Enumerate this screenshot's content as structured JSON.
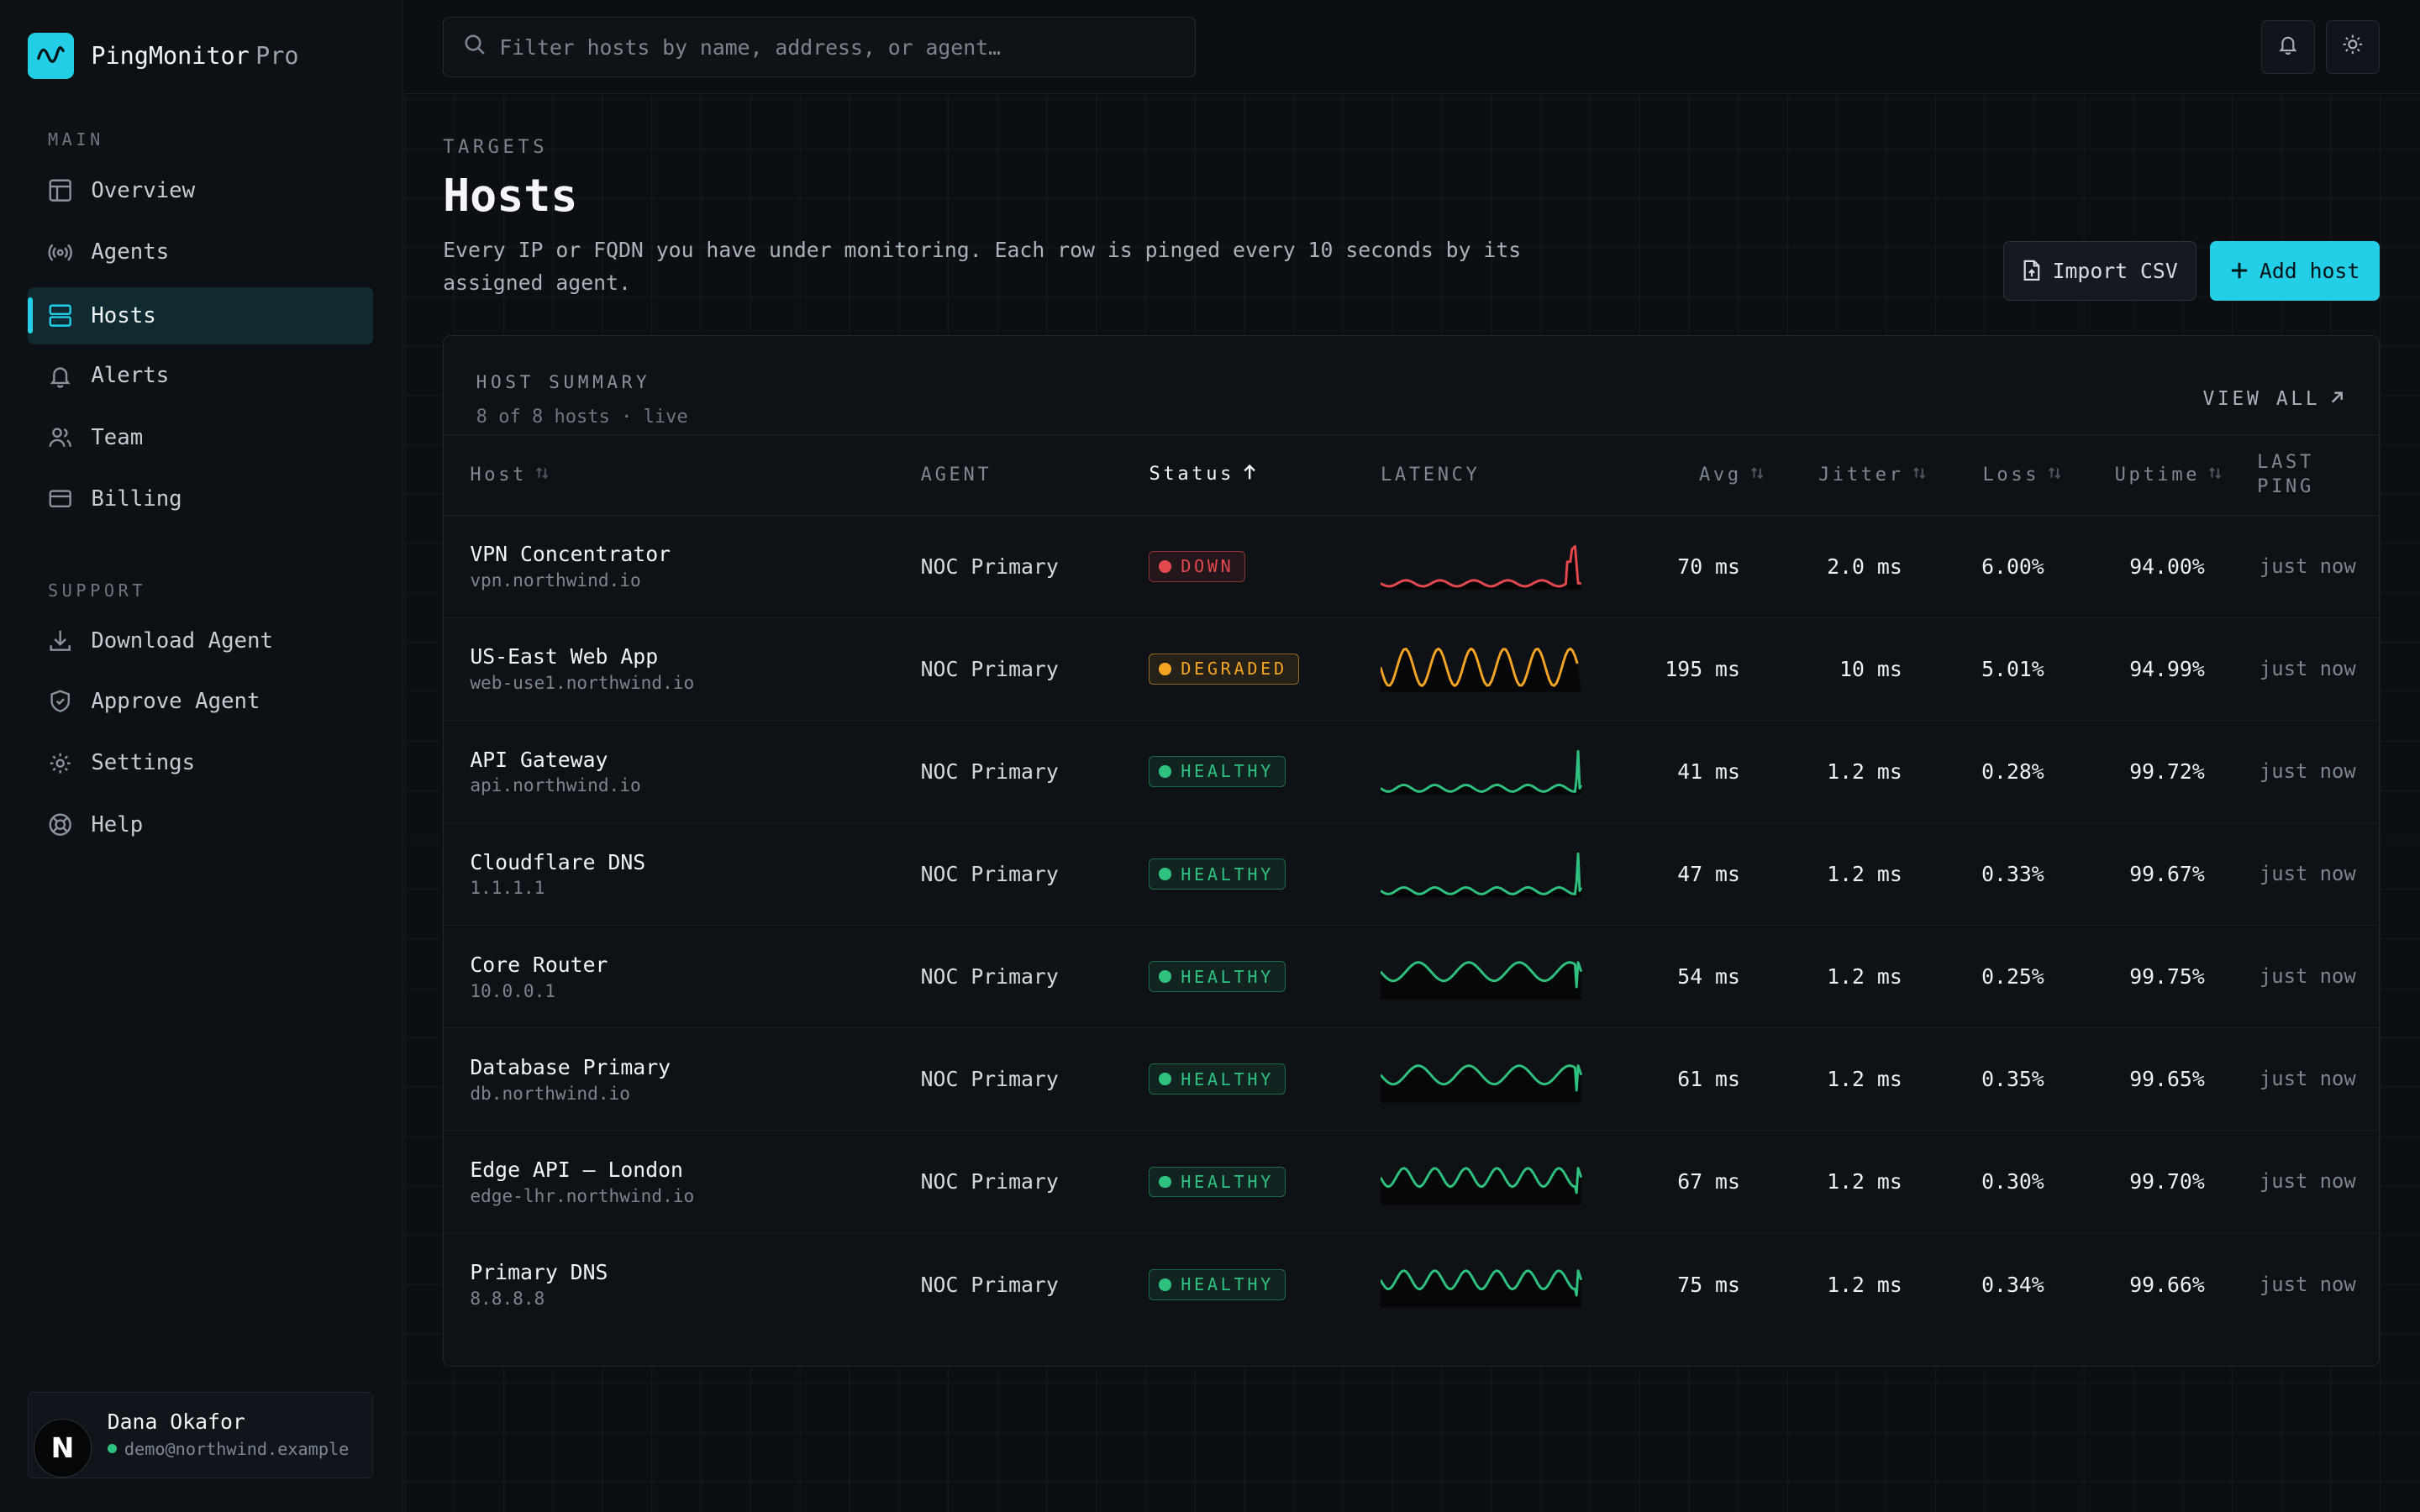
{
  "brand": {
    "name": "PingMonitor",
    "suffix": "Pro"
  },
  "sidebar": {
    "sections": [
      {
        "title": "MAIN",
        "items": [
          {
            "label": "Overview",
            "icon": "layout-icon"
          },
          {
            "label": "Agents",
            "icon": "broadcast-icon"
          },
          {
            "label": "Hosts",
            "icon": "server-icon",
            "active": true
          },
          {
            "label": "Alerts",
            "icon": "bell-icon"
          },
          {
            "label": "Team",
            "icon": "users-icon"
          },
          {
            "label": "Billing",
            "icon": "credit-card-icon"
          }
        ]
      },
      {
        "title": "SUPPORT",
        "items": [
          {
            "label": "Download Agent",
            "icon": "download-icon"
          },
          {
            "label": "Approve Agent",
            "icon": "shield-icon"
          },
          {
            "label": "Settings",
            "icon": "gear-icon"
          },
          {
            "label": "Help",
            "icon": "lifebuoy-icon"
          }
        ]
      }
    ],
    "user": {
      "name": "Dana Okafor",
      "email": "demo@northwind.example",
      "avatar_letter": "N",
      "status_color": "#2ec27e"
    }
  },
  "search": {
    "placeholder": "Filter hosts by name, address, or agent…"
  },
  "page": {
    "eyebrow": "TARGETS",
    "title": "Hosts",
    "description": "Every IP or FQDN you have under monitoring. Each row is pinged every 10 seconds by its assigned agent.",
    "import_label": "Import CSV",
    "add_label": "Add host"
  },
  "summary": {
    "title": "HOST SUMMARY",
    "subtitle": "8 of 8 hosts · live",
    "view_all": "VIEW ALL"
  },
  "table": {
    "columns": [
      "Host",
      "AGENT",
      "Status",
      "LATENCY",
      "Avg",
      "Jitter",
      "Loss",
      "Uptime",
      "LAST PING"
    ],
    "rows": [
      {
        "name": "VPN Concentrator",
        "addr": "vpn.northwind.io",
        "agent": "NOC Primary",
        "status": "DOWN",
        "avg": "70 ms",
        "jitter": "2.0 ms",
        "loss": "6.00%",
        "uptime": "94.00%",
        "last": "just now",
        "spark": "down"
      },
      {
        "name": "US-East Web App",
        "addr": "web-use1.northwind.io",
        "agent": "NOC Primary",
        "status": "DEGRADED",
        "avg": "195 ms",
        "jitter": "10 ms",
        "loss": "5.01%",
        "uptime": "94.99%",
        "last": "just now",
        "spark": "degraded"
      },
      {
        "name": "API Gateway",
        "addr": "api.northwind.io",
        "agent": "NOC Primary",
        "status": "HEALTHY",
        "avg": "41 ms",
        "jitter": "1.2 ms",
        "loss": "0.28%",
        "uptime": "99.72%",
        "last": "just now",
        "spark": "flat"
      },
      {
        "name": "Cloudflare DNS",
        "addr": "1.1.1.1",
        "agent": "NOC Primary",
        "status": "HEALTHY",
        "avg": "47 ms",
        "jitter": "1.2 ms",
        "loss": "0.33%",
        "uptime": "99.67%",
        "last": "just now",
        "spark": "flat"
      },
      {
        "name": "Core Router",
        "addr": "10.0.0.1",
        "agent": "NOC Primary",
        "status": "HEALTHY",
        "avg": "54 ms",
        "jitter": "1.2 ms",
        "loss": "0.25%",
        "uptime": "99.75%",
        "last": "just now",
        "spark": "wave4"
      },
      {
        "name": "Database Primary",
        "addr": "db.northwind.io",
        "agent": "NOC Primary",
        "status": "HEALTHY",
        "avg": "61 ms",
        "jitter": "1.2 ms",
        "loss": "0.35%",
        "uptime": "99.65%",
        "last": "just now",
        "spark": "wave4"
      },
      {
        "name": "Edge API — London",
        "addr": "edge-lhr.northwind.io",
        "agent": "NOC Primary",
        "status": "HEALTHY",
        "avg": "67 ms",
        "jitter": "1.2 ms",
        "loss": "0.30%",
        "uptime": "99.70%",
        "last": "just now",
        "spark": "wave6"
      },
      {
        "name": "Primary DNS",
        "addr": "8.8.8.8",
        "agent": "NOC Primary",
        "status": "HEALTHY",
        "avg": "75 ms",
        "jitter": "1.2 ms",
        "loss": "0.34%",
        "uptime": "99.66%",
        "last": "just now",
        "spark": "wave6"
      }
    ]
  },
  "colors": {
    "accent": "#22cfe6",
    "down": "#e5484d",
    "degraded": "#f5a524",
    "healthy": "#2ec27e"
  }
}
